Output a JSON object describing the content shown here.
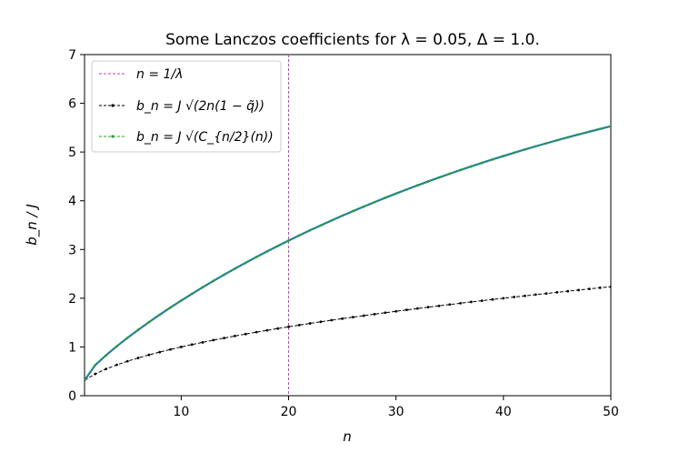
{
  "chart_data": {
    "type": "line",
    "title": "Some Lanczos coefficients for λ = 0.05, Δ = 1.0.",
    "xlabel": "n",
    "ylabel": "b_n / J",
    "xlim": [
      1,
      50
    ],
    "ylim": [
      0,
      7
    ],
    "xticks": [
      10,
      20,
      30,
      40,
      50
    ],
    "yticks": [
      0,
      1,
      2,
      3,
      4,
      5,
      6,
      7
    ],
    "grid": false,
    "legend_position": "top-left",
    "vline": {
      "x": 20,
      "label": "n = 1/λ",
      "color": "#bf40bf"
    },
    "x": [
      1,
      2,
      3,
      4,
      5,
      6,
      7,
      8,
      9,
      10,
      11,
      12,
      13,
      14,
      15,
      16,
      17,
      18,
      19,
      20,
      21,
      22,
      23,
      24,
      25,
      26,
      27,
      28,
      29,
      30,
      31,
      32,
      33,
      34,
      35,
      36,
      37,
      38,
      39,
      40,
      41,
      42,
      43,
      44,
      45,
      46,
      47,
      48,
      49,
      50
    ],
    "series": [
      {
        "name": "b_n = J √(2n(1 − q̃))",
        "color": "#000000",
        "values": [
          0.316,
          0.447,
          0.548,
          0.632,
          0.707,
          0.775,
          0.837,
          0.894,
          0.949,
          1.0,
          1.049,
          1.095,
          1.14,
          1.183,
          1.225,
          1.265,
          1.304,
          1.342,
          1.378,
          1.414,
          1.449,
          1.483,
          1.517,
          1.549,
          1.581,
          1.612,
          1.643,
          1.673,
          1.703,
          1.732,
          1.761,
          1.789,
          1.817,
          1.844,
          1.871,
          1.897,
          1.924,
          1.949,
          1.975,
          2.0,
          2.025,
          2.049,
          2.074,
          2.098,
          2.121,
          2.145,
          2.168,
          2.191,
          2.214,
          2.236
        ]
      },
      {
        "name": "b_n = J √(C_{n/2}(n))",
        "color": "#2ca02c",
        "values": [
          0.316,
          0.629,
          0.829,
          1.014,
          1.187,
          1.352,
          1.51,
          1.662,
          1.809,
          1.952,
          2.09,
          2.225,
          2.356,
          2.483,
          2.607,
          2.728,
          2.846,
          2.961,
          3.073,
          3.183,
          3.29,
          3.394,
          3.496,
          3.596,
          3.693,
          3.788,
          3.881,
          3.972,
          4.061,
          4.148,
          4.233,
          4.316,
          4.397,
          4.477,
          4.555,
          4.631,
          4.705,
          4.778,
          4.849,
          4.918,
          4.986,
          5.052,
          5.117,
          5.18,
          5.242,
          5.302,
          5.361,
          5.418,
          5.474,
          5.529
        ]
      }
    ]
  }
}
